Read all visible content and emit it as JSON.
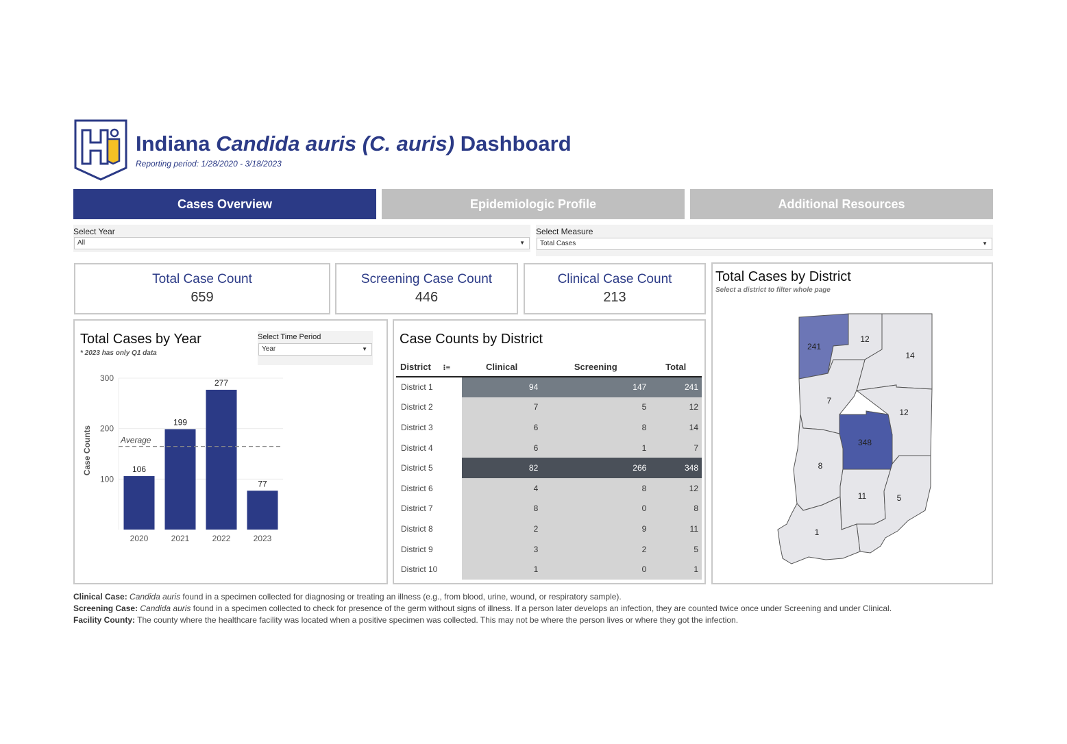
{
  "header": {
    "title_prefix": "Indiana ",
    "title_italic": "Candida auris (C. auris)",
    "title_suffix": " Dashboard",
    "reporting_period": "Reporting period: 1/28/2020 - 3/18/2023"
  },
  "tabs": [
    {
      "label": "Cases Overview",
      "active": true
    },
    {
      "label": "Epidemiologic Profile",
      "active": false
    },
    {
      "label": "Additional Resources",
      "active": false
    }
  ],
  "filters": {
    "year": {
      "label": "Select Year",
      "value": "All"
    },
    "measure": {
      "label": "Select Measure",
      "value": "Total Cases"
    },
    "time_period": {
      "label": "Select Time Period",
      "value": "Year"
    }
  },
  "kpis": {
    "total": {
      "label": "Total Case Count",
      "value": "659"
    },
    "screening": {
      "label": "Screening Case Count",
      "value": "446"
    },
    "clinical": {
      "label": "Clinical Case Count",
      "value": "213"
    }
  },
  "year_panel": {
    "title": "Total Cases by Year",
    "note": "*  2023 has only Q1 data",
    "average_label": "Average"
  },
  "chart_data": {
    "type": "bar",
    "categories": [
      "2020",
      "2021",
      "2022",
      "2023"
    ],
    "values": [
      106,
      199,
      277,
      77
    ],
    "ylabel": "Case Counts",
    "xlabel": "",
    "ylim": [
      0,
      300
    ],
    "yticks": [
      100,
      200,
      300
    ],
    "average": 164.75,
    "bar_color": "#2b3a86"
  },
  "district_table": {
    "title": "Case Counts by District",
    "columns": [
      "District",
      "Clinical",
      "Screening",
      "Total"
    ],
    "rows": [
      {
        "name": "District 1",
        "clinical": "94",
        "screening": "147",
        "total": "241"
      },
      {
        "name": "District 2",
        "clinical": "7",
        "screening": "5",
        "total": "12"
      },
      {
        "name": "District 3",
        "clinical": "6",
        "screening": "8",
        "total": "14"
      },
      {
        "name": "District 4",
        "clinical": "6",
        "screening": "1",
        "total": "7"
      },
      {
        "name": "District 5",
        "clinical": "82",
        "screening": "266",
        "total": "348"
      },
      {
        "name": "District 6",
        "clinical": "4",
        "screening": "8",
        "total": "12"
      },
      {
        "name": "District 7",
        "clinical": "8",
        "screening": "0",
        "total": "8"
      },
      {
        "name": "District 8",
        "clinical": "2",
        "screening": "9",
        "total": "11"
      },
      {
        "name": "District 9",
        "clinical": "3",
        "screening": "2",
        "total": "5"
      },
      {
        "name": "District 10",
        "clinical": "1",
        "screening": "0",
        "total": "1"
      }
    ]
  },
  "map_panel": {
    "title": "Total Cases by District",
    "subtitle": "Select a district to filter whole page",
    "labels": [
      "241",
      "12",
      "14",
      "7",
      "12",
      "348",
      "8",
      "11",
      "5",
      "1"
    ]
  },
  "colors": {
    "primary": "#2b3a86",
    "tab_inactive": "#bfbfbf",
    "map_high": "#4b5aa6",
    "map_mid": "#6c76b6",
    "map_low": "#e6e6ea"
  },
  "footnotes": [
    {
      "term": "Clinical Case:",
      "italic": "Candida auris",
      "text": " found in a specimen collected for diagnosing or treating an illness (e.g., from blood, urine, wound, or respiratory sample)."
    },
    {
      "term": "Screening Case:",
      "italic": "Candida auris",
      "text": " found in a specimen collected to check for presence of the germ without signs of illness. If a person later develops an infection, they are counted twice once under Screening and under Clinical."
    },
    {
      "term": "Facility County:",
      "italic": "",
      "text": " The county where the healthcare facility was located when a positive specimen was collected. This may not be where the person lives or where they got the infection."
    }
  ]
}
